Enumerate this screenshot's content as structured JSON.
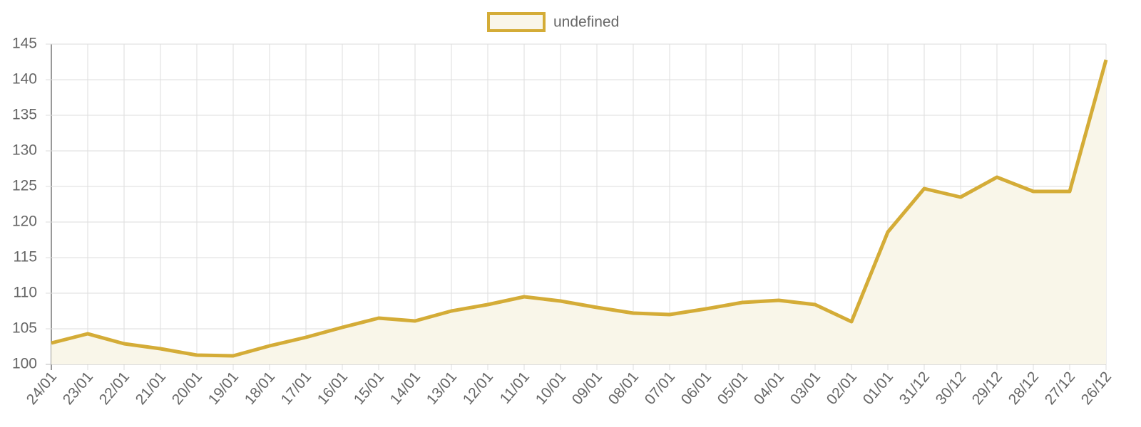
{
  "chart_data": {
    "type": "line",
    "categories": [
      "24/01",
      "23/01",
      "22/01",
      "21/01",
      "20/01",
      "19/01",
      "18/01",
      "17/01",
      "16/01",
      "15/01",
      "14/01",
      "13/01",
      "12/01",
      "11/01",
      "10/01",
      "09/01",
      "08/01",
      "07/01",
      "06/01",
      "05/01",
      "04/01",
      "03/01",
      "02/01",
      "01/01",
      "31/12",
      "30/12",
      "29/12",
      "28/12",
      "27/12",
      "26/12"
    ],
    "series": [
      {
        "name": "undefined",
        "color": "#d4ac37",
        "fill_color": "#f9f6e9",
        "values": [
          103.0,
          104.3,
          102.9,
          102.2,
          101.3,
          101.2,
          102.6,
          103.8,
          105.2,
          106.5,
          106.1,
          107.5,
          108.4,
          109.5,
          108.9,
          108.0,
          107.2,
          107.0,
          107.8,
          108.7,
          109.0,
          108.4,
          106.0,
          118.6,
          124.7,
          123.5,
          126.3,
          124.3,
          124.3,
          142.8
        ]
      }
    ],
    "ylim": [
      100,
      145
    ],
    "yticks": [
      100,
      105,
      110,
      115,
      120,
      125,
      130,
      135,
      140,
      145
    ],
    "grid": true,
    "legend": "top"
  }
}
